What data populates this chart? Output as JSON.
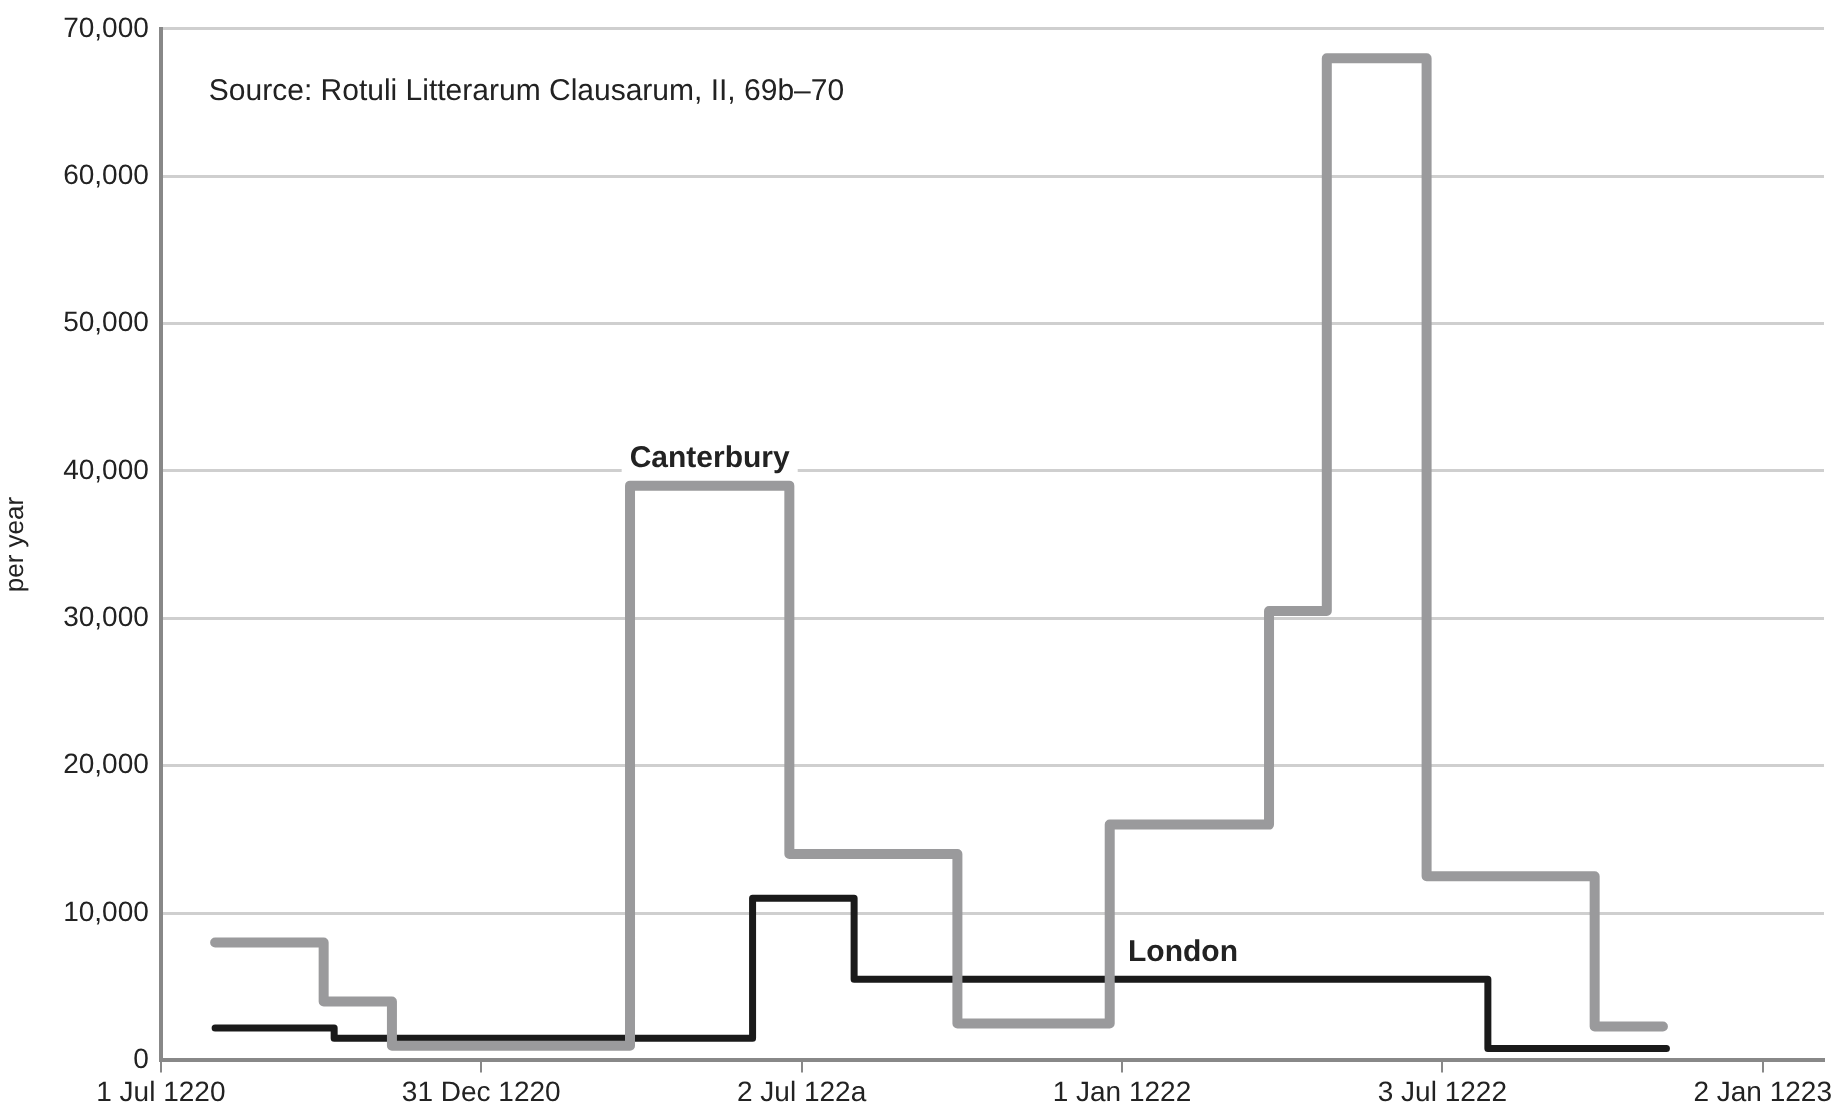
{
  "chart_data": {
    "type": "step",
    "ylabel": "per year",
    "annotations": [
      "Source: Rotuli Litterarum Clausarum, II, 69b–70"
    ],
    "xlim": [
      "1220-07-01",
      "1223-02-06"
    ],
    "xticks": [
      {
        "value": "1220-07-01",
        "label": "1 Jul 1220"
      },
      {
        "value": "1220-12-31",
        "label": "31 Dec 1220"
      },
      {
        "value": "1221-07-02",
        "label": "2 Jul 122a"
      },
      {
        "value": "1222-01-01",
        "label": "1 Jan 1222"
      },
      {
        "value": "1222-07-03",
        "label": "3 Jul 1222"
      },
      {
        "value": "1223-01-02",
        "label": "2 Jan 1223"
      }
    ],
    "ylim": [
      0,
      70000
    ],
    "yticks": [
      {
        "value": 0,
        "label": "0"
      },
      {
        "value": 10000,
        "label": "10,000"
      },
      {
        "value": 20000,
        "label": "20,000"
      },
      {
        "value": 30000,
        "label": "30,000"
      },
      {
        "value": 40000,
        "label": "40,000"
      },
      {
        "value": 50000,
        "label": "50,000"
      },
      {
        "value": 60000,
        "label": "60,000"
      },
      {
        "value": 70000,
        "label": "70,000"
      }
    ],
    "grid": "y",
    "legend": false,
    "series": [
      {
        "name": "Canterbury",
        "color": "#9a9a9c",
        "x": [
          "1220-08-01",
          "1220-10-02",
          "1220-11-10",
          "1221-03-26",
          "1221-06-25",
          "1221-09-29",
          "1221-12-25",
          "1222-03-26",
          "1222-04-28",
          "1222-06-24",
          "1222-09-28",
          "1222-11-06"
        ],
        "values": [
          8000,
          4000,
          1000,
          39000,
          14000,
          2500,
          16000,
          30500,
          68000,
          12500,
          2300,
          2300
        ]
      },
      {
        "name": "London",
        "color": "#1a1a1a",
        "x": [
          "1220-08-01",
          "1220-10-08",
          "1221-06-04",
          "1221-08-01",
          "1222-07-29",
          "1222-11-08"
        ],
        "values": [
          2200,
          1500,
          11000,
          5500,
          800,
          800
        ]
      }
    ]
  }
}
